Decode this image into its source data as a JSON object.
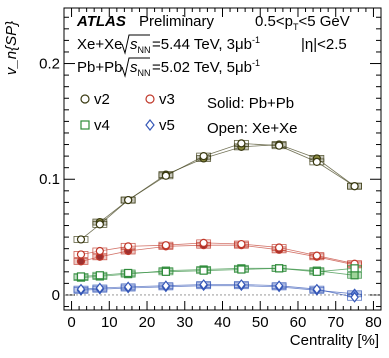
{
  "chart_data": {
    "type": "scatter",
    "title": "",
    "xlabel": "Centrality [%]",
    "ylabel": "v_n{SP}",
    "xlim": [
      -2,
      82
    ],
    "ylim": [
      -0.013,
      0.248
    ],
    "x_ticks": [
      0,
      10,
      20,
      30,
      40,
      50,
      60,
      70,
      80
    ],
    "y_ticks": [
      0,
      0.1,
      0.2
    ],
    "grid": false,
    "legend_position": "top-left",
    "annotations": {
      "atlas": "ATLAS",
      "preliminary": "Preliminary",
      "xe_line": "Xe+Xe",
      "xe_energy": "=5.44 TeV, 3μb",
      "pb_line": "Pb+Pb",
      "pb_energy": "=5.02 TeV, 5μb",
      "sqrt_s": "s",
      "nn": "NN",
      "inv": "-1",
      "pt_range": "0.5<p",
      "pt_sub": "T",
      "pt_unit": "<5 GeV",
      "eta_range": "|η|<2.5",
      "solid_label": "Solid: Pb+Pb",
      "open_label": "Open: Xe+Xe"
    },
    "legend": [
      {
        "label": "v2",
        "sym": "circle",
        "color": "#3a3a12"
      },
      {
        "label": "v3",
        "sym": "circle",
        "color": "#c0392b"
      },
      {
        "label": "v4",
        "sym": "square",
        "color": "#2e8b3a"
      },
      {
        "label": "v5",
        "sym": "diamond",
        "color": "#3557b7"
      }
    ],
    "series": [
      {
        "name": "v2",
        "sym": "circle",
        "color": "#3a3a12",
        "fill": "#8a8a3e",
        "open": false,
        "x": [
          7.5,
          15,
          25,
          35,
          45,
          55,
          65,
          75
        ],
        "y": [
          0.063,
          0.082,
          0.104,
          0.118,
          0.128,
          0.13,
          0.118,
          0.094
        ]
      },
      {
        "name": "v2",
        "sym": "circle",
        "color": "#3a3a12",
        "open": true,
        "x": [
          2.5,
          7.5,
          15,
          25,
          35,
          45,
          55,
          65,
          75
        ],
        "y": [
          0.048,
          0.061,
          0.082,
          0.103,
          0.12,
          0.131,
          0.129,
          0.115,
          0.094
        ]
      },
      {
        "name": "v3",
        "sym": "circle",
        "color": "#c0392b",
        "fill": "#9c3030",
        "open": false,
        "x": [
          2.5,
          7.5,
          15,
          25,
          35,
          45,
          55,
          65,
          75
        ],
        "y": [
          0.029,
          0.033,
          0.038,
          0.042,
          0.043,
          0.043,
          0.039,
          0.033,
          0.026
        ]
      },
      {
        "name": "v3",
        "sym": "circle",
        "color": "#c0392b",
        "open": true,
        "x": [
          2.5,
          7.5,
          15,
          25,
          35,
          45,
          55,
          65,
          75
        ],
        "y": [
          0.035,
          0.038,
          0.042,
          0.043,
          0.045,
          0.044,
          0.041,
          0.034,
          0.027
        ]
      },
      {
        "name": "v4",
        "sym": "square",
        "color": "#2e8b3a",
        "fill": "#9fd49a",
        "open": false,
        "x": [
          2.5,
          7.5,
          15,
          25,
          35,
          45,
          55,
          65,
          75
        ],
        "y": [
          0.015,
          0.016,
          0.018,
          0.021,
          0.022,
          0.023,
          0.023,
          0.021,
          0.017
        ]
      },
      {
        "name": "v4",
        "sym": "square",
        "color": "#2e8b3a",
        "open": true,
        "x": [
          2.5,
          7.5,
          15,
          25,
          35,
          45,
          55,
          65,
          75
        ],
        "y": [
          0.016,
          0.017,
          0.019,
          0.02,
          0.021,
          0.022,
          0.023,
          0.02,
          0.023
        ]
      },
      {
        "name": "v5",
        "sym": "diamond",
        "color": "#3557b7",
        "fill": "#6a8ad8",
        "open": false,
        "x": [
          2.5,
          7.5,
          15,
          25,
          35,
          45,
          55,
          65,
          75
        ],
        "y": [
          0.004,
          0.005,
          0.006,
          0.007,
          0.008,
          0.008,
          0.007,
          0.004,
          0.001
        ]
      },
      {
        "name": "v5",
        "sym": "diamond",
        "color": "#3557b7",
        "open": true,
        "x": [
          2.5,
          7.5,
          15,
          25,
          35,
          45,
          55,
          65,
          75
        ],
        "y": [
          0.005,
          0.006,
          0.007,
          0.008,
          0.009,
          0.009,
          0.008,
          0.005,
          -0.002
        ]
      }
    ]
  }
}
